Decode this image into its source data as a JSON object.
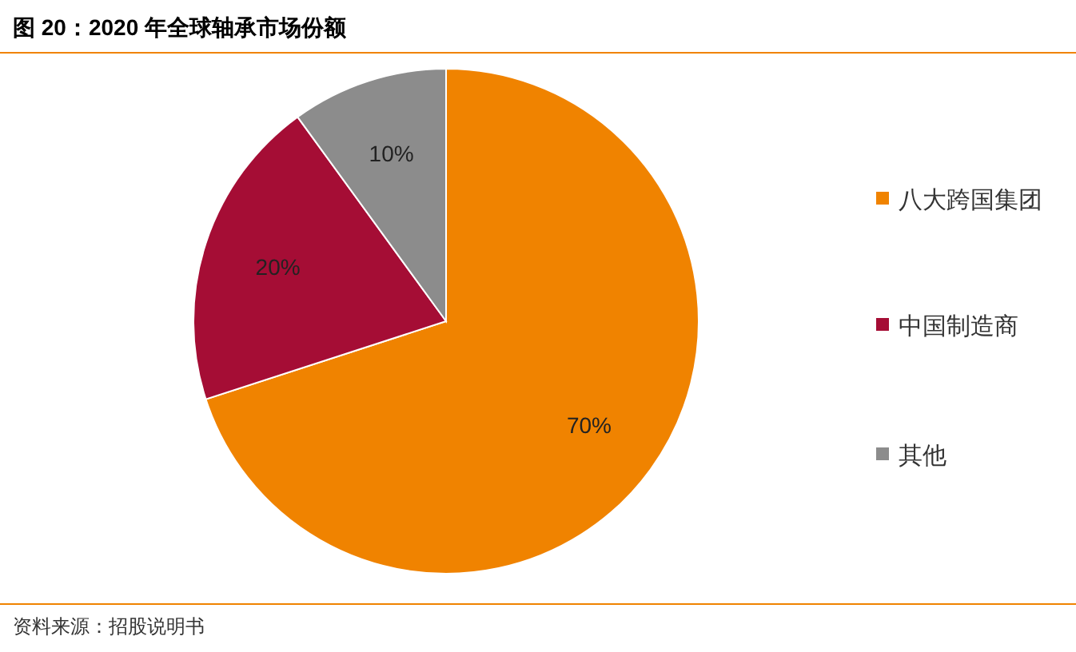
{
  "chart_data": {
    "type": "pie",
    "title": "图 20：2020 年全球轴承市场份额",
    "categories": [
      "八大跨国集团",
      "中国制造商",
      "其他"
    ],
    "values": [
      70,
      20,
      10
    ],
    "value_labels": [
      "70%",
      "20%",
      "10%"
    ],
    "colors": [
      "#f08300",
      "#a50d35",
      "#8c8c8c"
    ],
    "legend": "right",
    "annotations": [
      "资料来源：招股说明书"
    ]
  }
}
